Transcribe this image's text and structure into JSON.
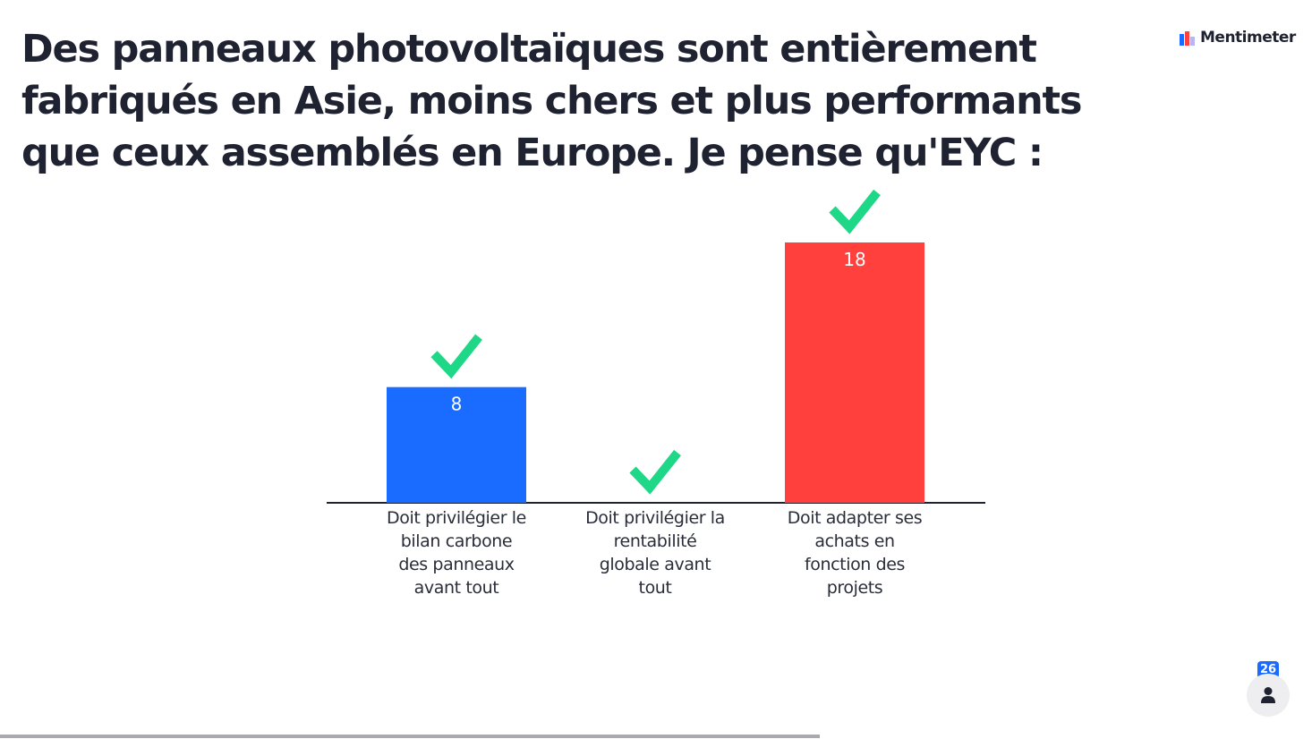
{
  "slide": {
    "question": "Des panneaux photovoltaïques sont entièrement fabriqués en Asie, moins chers et plus performants que ceux assemblés en Europe. Je pense qu'EYC :"
  },
  "brand": {
    "name": "Mentimeter",
    "icon": "mentimeter-logo-icon"
  },
  "chart_data": {
    "type": "bar",
    "categories": [
      "Doit privilégier le bilan carbone des panneaux avant tout",
      "Doit privilégier la rentabilité globale avant tout",
      "Doit adapter ses achats en fonction des projets"
    ],
    "values": [
      8,
      0,
      18
    ],
    "colors": [
      "#196cff",
      "#196cff",
      "#ff403d"
    ],
    "correct": [
      true,
      true,
      true
    ],
    "correct_icon": "checkmark-icon",
    "correct_color": "#1ed787",
    "title": "",
    "xlabel": "",
    "ylabel": "",
    "ylim": [
      0,
      18
    ],
    "grid": false,
    "legend": "none"
  },
  "participants": {
    "count": "26",
    "icon": "person-icon"
  },
  "progress": {
    "fraction": 0.625
  }
}
